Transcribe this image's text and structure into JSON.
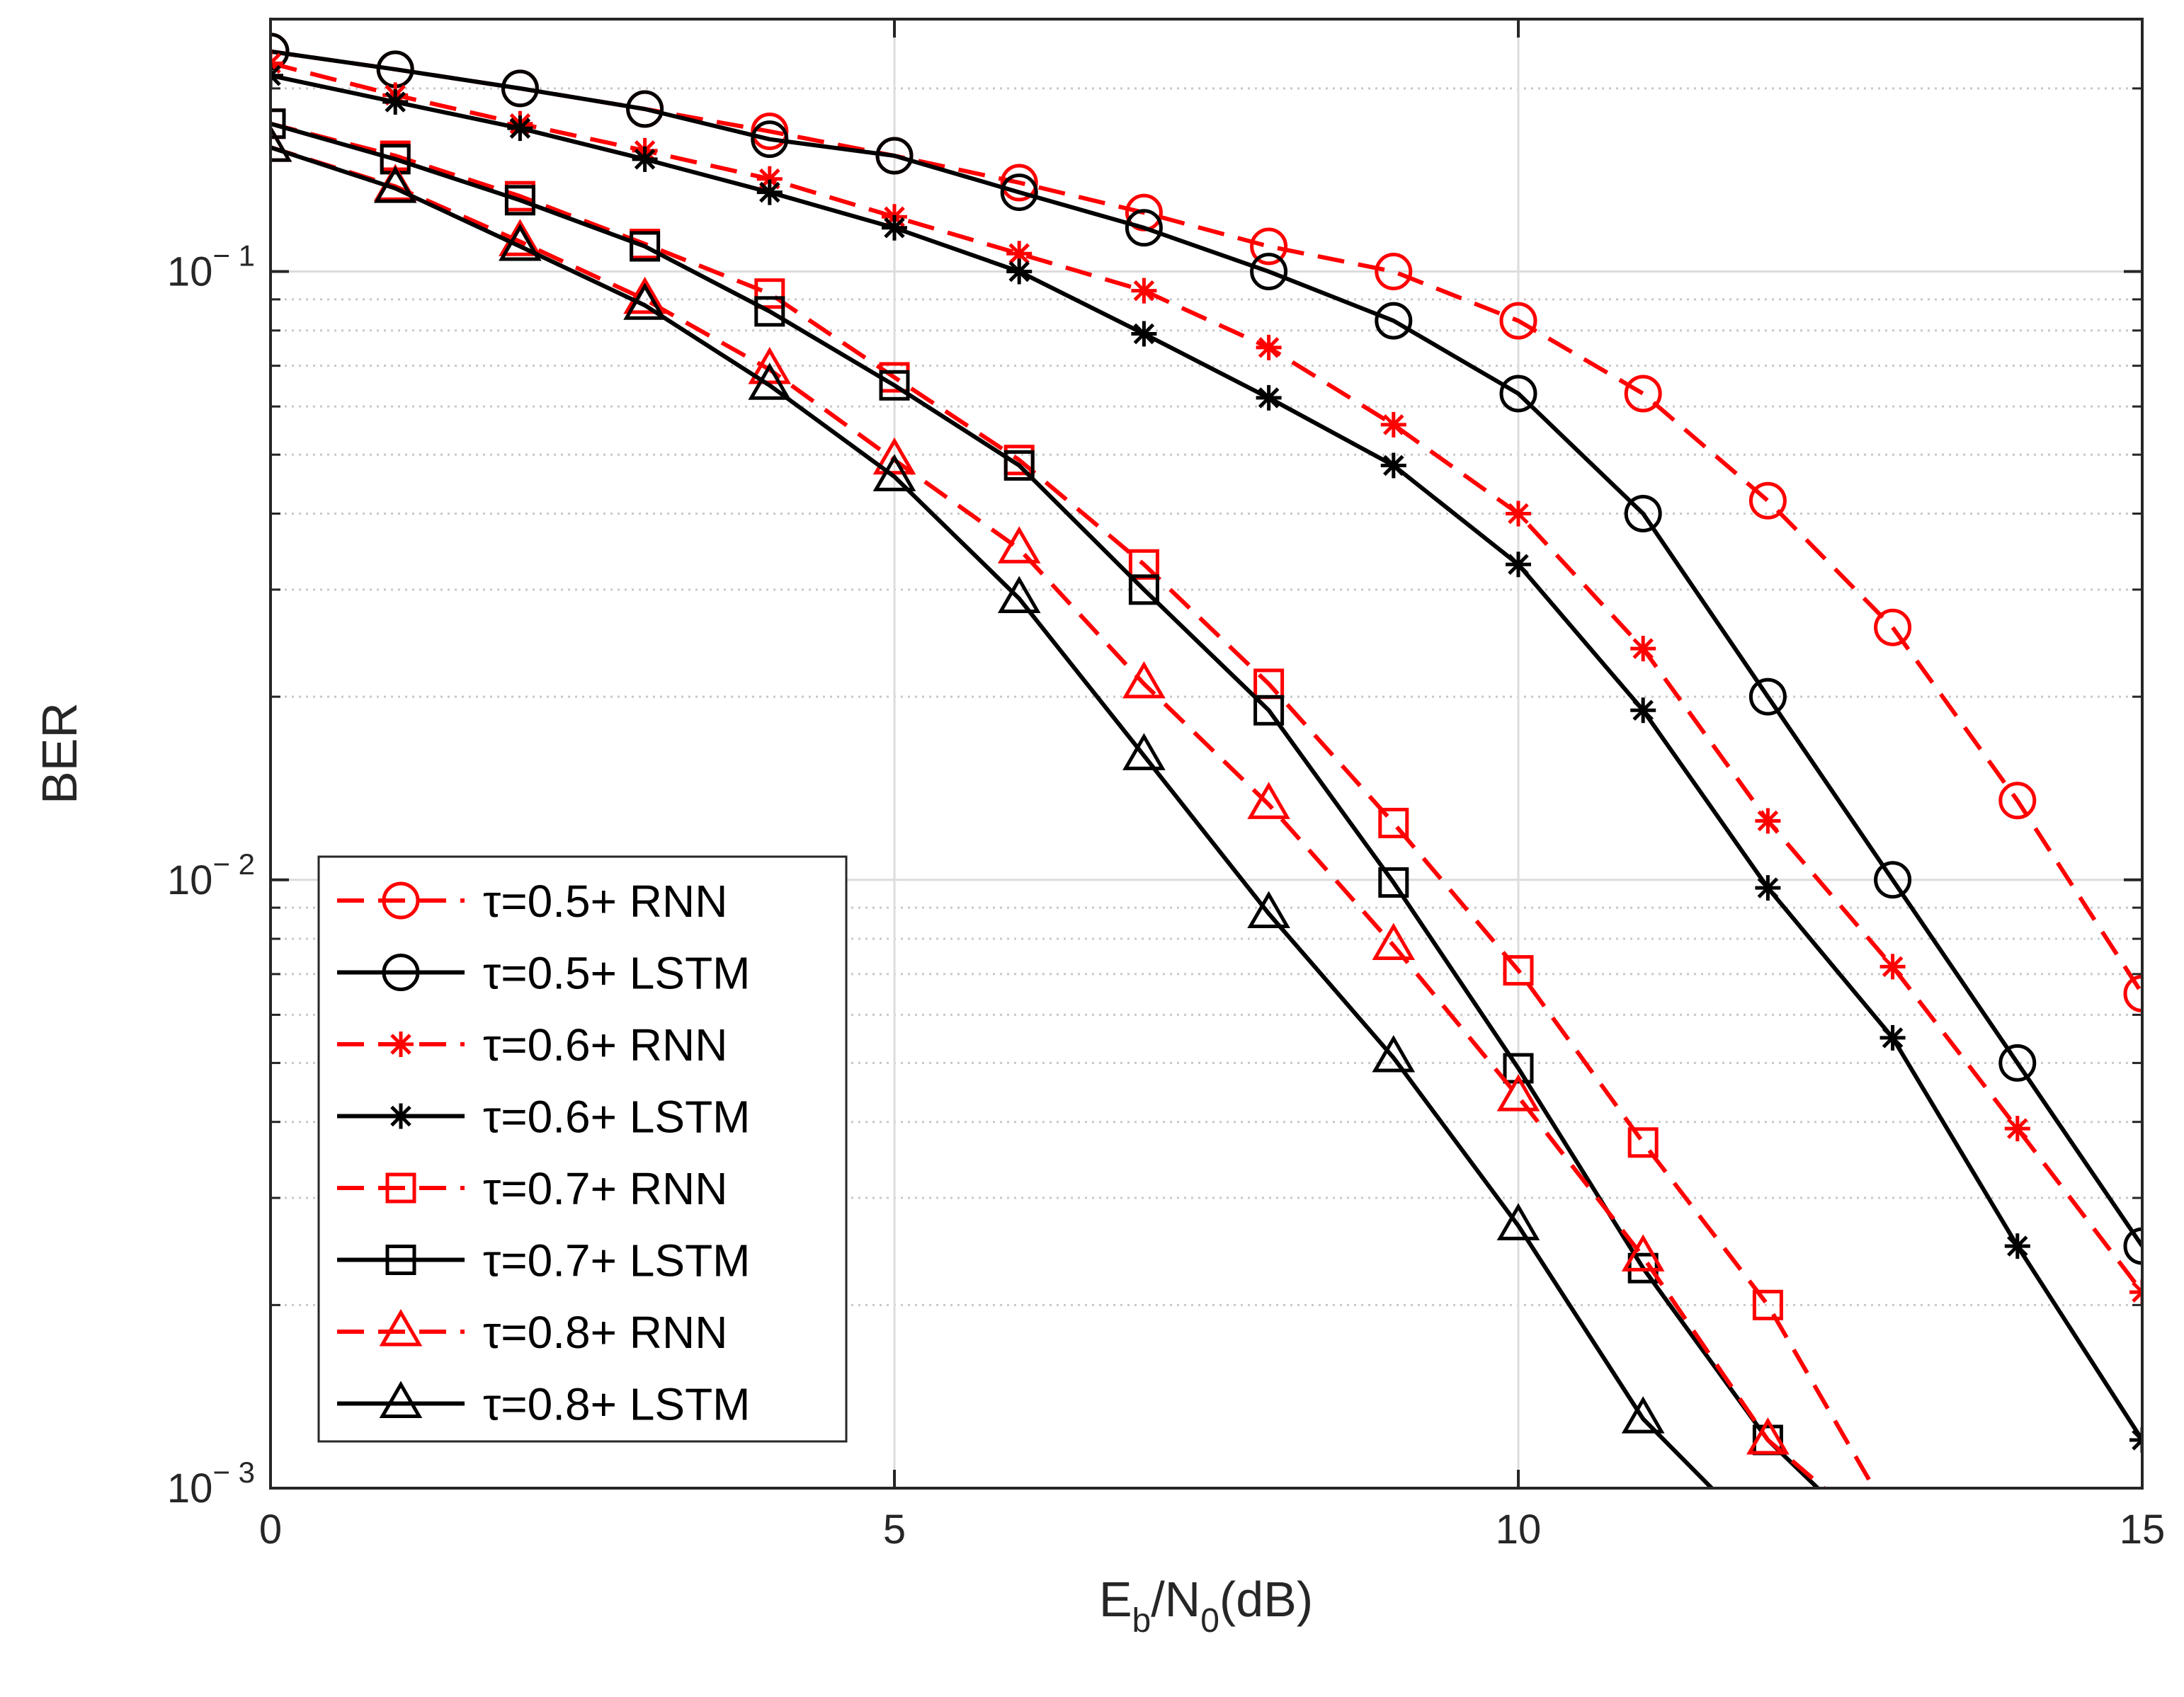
{
  "chart_data": {
    "type": "line",
    "title": "",
    "xlabel": "E_b/N_0(dB)",
    "xlabel_parts": {
      "main1": "E",
      "sub1": "b",
      "main2": "/N",
      "sub2": "0",
      "main3": "(dB)"
    },
    "ylabel": "BER",
    "xlim": [
      0,
      15
    ],
    "ylim": [
      0.001,
      0.26
    ],
    "yscale": "log",
    "grid": true,
    "legend_position": "bottom-left",
    "x_ticks": [
      {
        "value": 0,
        "label": "0"
      },
      {
        "value": 5,
        "label": "5"
      },
      {
        "value": 10,
        "label": "10"
      },
      {
        "value": 15,
        "label": "15"
      }
    ],
    "y_ticks": [
      {
        "value": 0.1,
        "base": "10",
        "exp": "− 1"
      },
      {
        "value": 0.01,
        "base": "10",
        "exp": "− 2"
      },
      {
        "value": 0.001,
        "base": "10",
        "exp": "− 3"
      }
    ],
    "colors": {
      "rnn": "#ff0000",
      "lstm": "#000000",
      "grid_major": "#dcdcdc",
      "grid_minor": "#c8c8c8"
    },
    "series": [
      {
        "name": "τ=0.5+ RNN",
        "style": "dashed",
        "color": "#ff0000",
        "marker": "circle",
        "x": [
          0,
          1,
          2,
          3,
          4,
          5,
          6,
          7,
          8,
          9,
          10,
          11,
          12,
          13,
          14,
          15
        ],
        "y": [
          0.23,
          0.215,
          0.2,
          0.185,
          0.17,
          0.155,
          0.14,
          0.125,
          0.11,
          0.1,
          0.083,
          0.063,
          0.042,
          0.026,
          0.0135,
          0.0065
        ]
      },
      {
        "name": "τ=0.5+ LSTM",
        "style": "solid",
        "color": "#000000",
        "marker": "circle",
        "x": [
          0,
          1,
          2,
          3,
          4,
          5,
          6,
          7,
          8,
          9,
          10,
          11,
          12,
          13,
          14,
          15
        ],
        "y": [
          0.23,
          0.215,
          0.2,
          0.185,
          0.165,
          0.155,
          0.135,
          0.118,
          0.1,
          0.083,
          0.063,
          0.04,
          0.02,
          0.01,
          0.005,
          0.0025
        ]
      },
      {
        "name": "τ=0.6+ RNN",
        "style": "dashed",
        "color": "#ff0000",
        "marker": "star",
        "x": [
          0,
          1,
          2,
          3,
          4,
          5,
          6,
          7,
          8,
          9,
          10,
          11,
          12,
          13,
          14,
          15
        ],
        "y": [
          0.22,
          0.195,
          0.175,
          0.158,
          0.142,
          0.123,
          0.107,
          0.093,
          0.075,
          0.056,
          0.04,
          0.024,
          0.0125,
          0.0072,
          0.0039,
          0.0021
        ]
      },
      {
        "name": "τ=0.6+ LSTM",
        "style": "solid",
        "color": "#000000",
        "marker": "star",
        "x": [
          0,
          1,
          2,
          3,
          4,
          5,
          6,
          7,
          8,
          9,
          10,
          11,
          12,
          13,
          14,
          15
        ],
        "y": [
          0.21,
          0.19,
          0.172,
          0.153,
          0.135,
          0.118,
          0.1,
          0.079,
          0.062,
          0.048,
          0.033,
          0.019,
          0.0097,
          0.0055,
          0.0025,
          0.0012
        ]
      },
      {
        "name": "τ=0.7+ RNN",
        "style": "dashed",
        "color": "#ff0000",
        "marker": "square",
        "x": [
          0,
          1,
          2,
          3,
          4,
          5,
          6,
          7,
          8,
          9,
          10,
          11,
          12,
          12.85
        ],
        "y": [
          0.175,
          0.155,
          0.133,
          0.111,
          0.092,
          0.067,
          0.049,
          0.033,
          0.021,
          0.0124,
          0.0071,
          0.0037,
          0.002,
          0.001
        ]
      },
      {
        "name": "τ=0.7+ LSTM",
        "style": "solid",
        "color": "#000000",
        "marker": "square",
        "x": [
          0,
          1,
          2,
          3,
          4,
          5,
          6,
          7,
          8,
          9,
          10,
          11,
          12,
          12.4
        ],
        "y": [
          0.175,
          0.153,
          0.131,
          0.11,
          0.086,
          0.065,
          0.048,
          0.03,
          0.019,
          0.0099,
          0.0049,
          0.0023,
          0.0012,
          0.001
        ]
      },
      {
        "name": "τ=0.8+ RNN",
        "style": "dashed",
        "color": "#ff0000",
        "marker": "triangle",
        "x": [
          0,
          1,
          2,
          3,
          4,
          5,
          6,
          7,
          8,
          9,
          10,
          11,
          12,
          12.45
        ],
        "y": [
          0.16,
          0.138,
          0.112,
          0.09,
          0.069,
          0.049,
          0.035,
          0.021,
          0.0133,
          0.0078,
          0.0044,
          0.0024,
          0.0012,
          0.001
        ]
      },
      {
        "name": "τ=0.8+ LSTM",
        "style": "solid",
        "color": "#000000",
        "marker": "triangle",
        "x": [
          0,
          1,
          2,
          3,
          4,
          5,
          6,
          7,
          8,
          9,
          10,
          11,
          11.55
        ],
        "y": [
          0.16,
          0.137,
          0.11,
          0.088,
          0.065,
          0.046,
          0.029,
          0.016,
          0.0088,
          0.0051,
          0.0027,
          0.0013,
          0.001
        ]
      }
    ]
  }
}
